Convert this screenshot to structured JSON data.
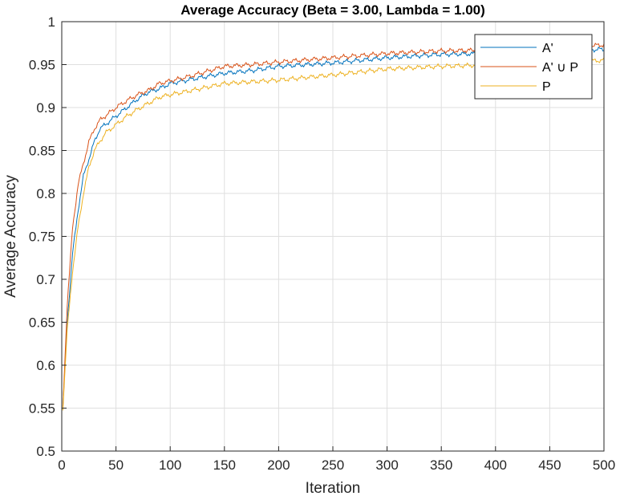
{
  "chart_data": {
    "type": "line",
    "title": "Average Accuracy (Beta = 3.00, Lambda = 1.00)",
    "xlabel": "Iteration",
    "ylabel": "Average Accuracy",
    "xlim": [
      0,
      500
    ],
    "ylim": [
      0.5,
      1.0
    ],
    "xticks": [
      0,
      50,
      100,
      150,
      200,
      250,
      300,
      350,
      400,
      450,
      500
    ],
    "yticks": [
      0.5,
      0.55,
      0.6,
      0.65,
      0.7,
      0.75,
      0.8,
      0.85,
      0.9,
      0.95,
      1.0
    ],
    "x_tick_labels": [
      "0",
      "50",
      "100",
      "150",
      "200",
      "250",
      "300",
      "350",
      "400",
      "450",
      "500"
    ],
    "y_tick_labels": [
      "0.5",
      "0.55",
      "0.6",
      "0.65",
      "0.7",
      "0.75",
      "0.8",
      "0.85",
      "0.9",
      "0.95",
      "1"
    ],
    "grid": true,
    "legend_position": "top-right",
    "x": [
      1,
      5,
      10,
      15,
      20,
      25,
      30,
      35,
      40,
      50,
      60,
      70,
      80,
      90,
      100,
      120,
      150,
      175,
      200,
      250,
      300,
      350,
      400,
      450,
      500
    ],
    "series": [
      {
        "name": "A'",
        "color": "#0072BD",
        "values": [
          0.55,
          0.65,
          0.73,
          0.78,
          0.82,
          0.84,
          0.86,
          0.875,
          0.88,
          0.89,
          0.9,
          0.91,
          0.918,
          0.922,
          0.928,
          0.933,
          0.94,
          0.943,
          0.948,
          0.952,
          0.958,
          0.962,
          0.963,
          0.965,
          0.968
        ]
      },
      {
        "name": "A' ∪ P",
        "color": "#D95319",
        "values": [
          0.55,
          0.67,
          0.76,
          0.81,
          0.835,
          0.86,
          0.875,
          0.885,
          0.89,
          0.9,
          0.908,
          0.915,
          0.92,
          0.928,
          0.931,
          0.937,
          0.948,
          0.95,
          0.953,
          0.958,
          0.963,
          0.966,
          0.967,
          0.969,
          0.973
        ]
      },
      {
        "name": "P",
        "color": "#EDB120",
        "values": [
          0.55,
          0.64,
          0.71,
          0.76,
          0.8,
          0.83,
          0.85,
          0.86,
          0.87,
          0.88,
          0.89,
          0.898,
          0.905,
          0.912,
          0.915,
          0.92,
          0.928,
          0.93,
          0.932,
          0.938,
          0.945,
          0.948,
          0.95,
          0.952,
          0.955
        ]
      }
    ]
  }
}
